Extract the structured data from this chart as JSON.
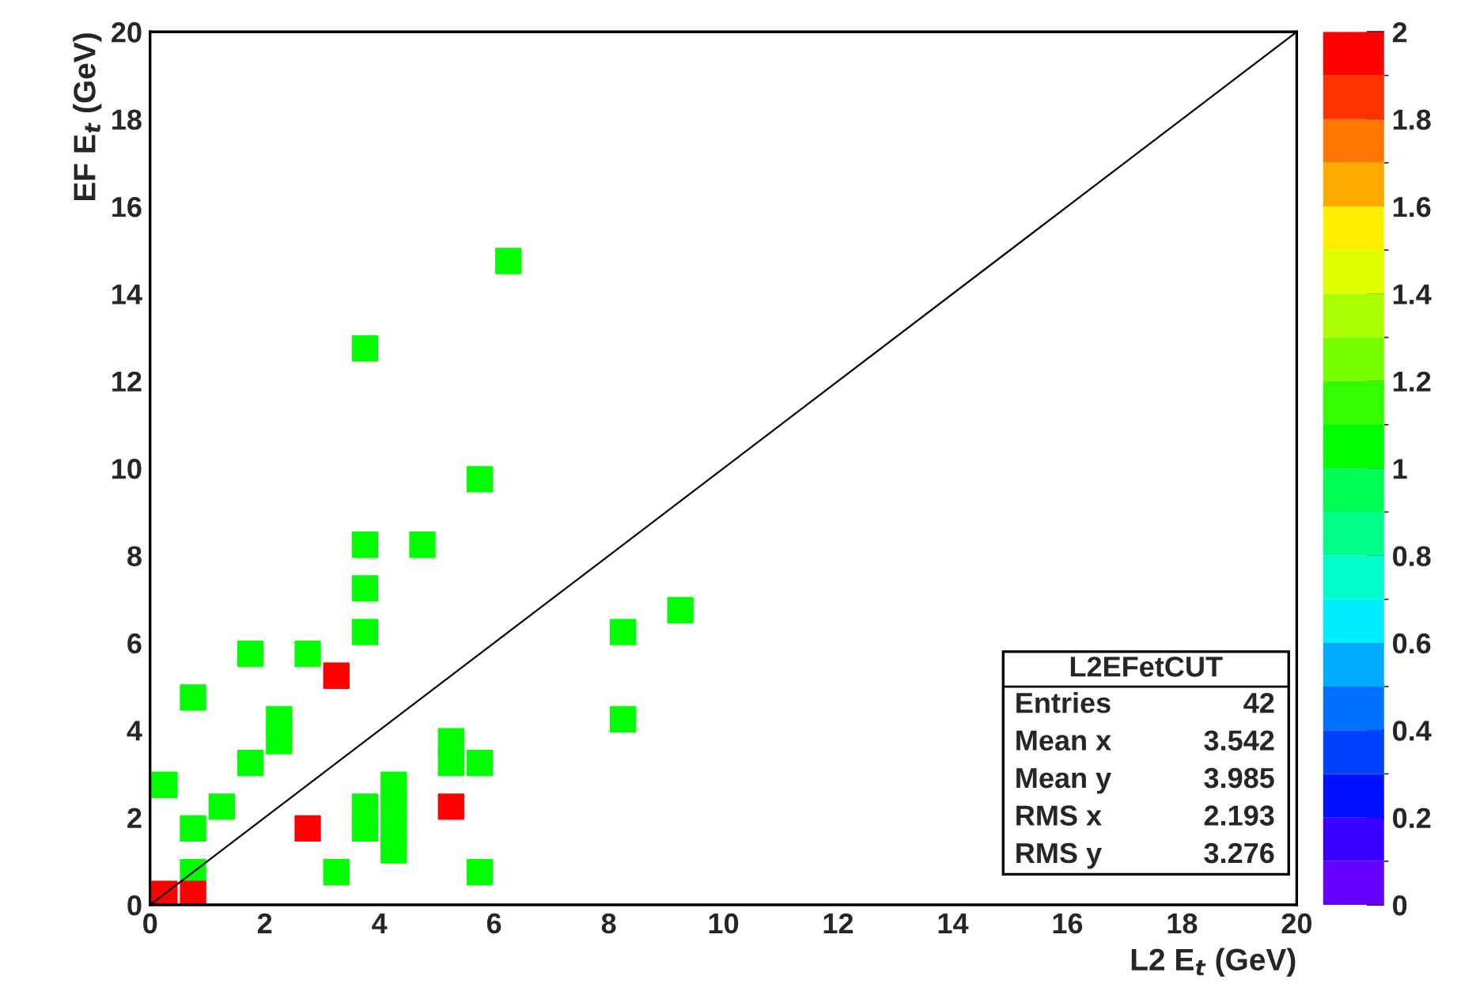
{
  "chart_data": {
    "type": "scatter",
    "xlabel": "L2 E$_{t}$ (GeV)",
    "ylabel": "EF E$_{t}$ (GeV)",
    "series": [
      {
        "type": "scatter",
        "marker": "square",
        "x": [
          6.25,
          3.75,
          5.75,
          3.75,
          4.75,
          3.75,
          3.75,
          1.75,
          2.75,
          3.25,
          0.75,
          2.25,
          2.25,
          1.75,
          0.25,
          1.25,
          0.75,
          2.75,
          3.75,
          3.75,
          4.25,
          4.25,
          4.25,
          4.25,
          3.25,
          5.75,
          5.25,
          5.25,
          5.75,
          5.25,
          0.75,
          0.25,
          0.75,
          8.25,
          9.25,
          8.25
        ],
        "values": [
          14.75,
          12.75,
          9.75,
          8.25,
          8.25,
          7.25,
          6.25,
          5.75,
          5.75,
          5.25,
          4.75,
          4.25,
          3.75,
          3.25,
          2.75,
          2.25,
          1.75,
          1.75,
          1.75,
          2.25,
          1.25,
          1.75,
          2.25,
          2.75,
          0.75,
          0.75,
          3.75,
          3.25,
          3.25,
          2.25,
          0.75,
          0.25,
          0.25,
          6.25,
          6.75,
          4.25
        ],
        "cvalues": [
          1,
          1,
          1,
          1,
          1,
          1,
          1,
          1,
          1,
          2,
          1,
          1,
          1,
          1,
          1,
          1,
          1,
          2,
          1,
          1,
          1,
          1,
          1,
          1,
          1,
          1,
          1,
          1,
          1,
          2,
          1,
          2,
          2,
          1,
          1,
          1
        ],
        "colors": [
          "#00ff00",
          "#00ff00",
          "#00ff00",
          "#00ff00",
          "#00ff00",
          "#00ff00",
          "#00ff00",
          "#00ff00",
          "#00ff00",
          "#ff0000",
          "#00ff00",
          "#00ff00",
          "#00ff00",
          "#00ff00",
          "#00ff00",
          "#00ff00",
          "#00ff00",
          "#ff0000",
          "#00ff00",
          "#00ff00",
          "#00ff00",
          "#00ff00",
          "#00ff00",
          "#00ff00",
          "#00ff00",
          "#00ff00",
          "#00ff00",
          "#00ff00",
          "#00ff00",
          "#ff0000",
          "#00ff00",
          "#ff0000",
          "#ff0000",
          "#00ff00",
          "#00ff00",
          "#00ff00"
        ]
      },
      {
        "type": "line",
        "color": "#000000",
        "x": [
          0,
          20
        ],
        "values": [
          0,
          20
        ]
      }
    ],
    "xlim": [
      0,
      20
    ],
    "ylim": [
      0,
      20
    ],
    "xticks": [
      0,
      2,
      4,
      6,
      8,
      10,
      12,
      14,
      16,
      18,
      20
    ],
    "yticks": [
      0,
      2,
      4,
      6,
      8,
      10,
      12,
      14,
      16,
      18,
      20
    ],
    "clim": [
      0,
      2
    ],
    "cticks": [
      0,
      0.2,
      0.4,
      0.6,
      0.8,
      1,
      1.2,
      1.4,
      1.6,
      1.8,
      2
    ],
    "grid": false,
    "legend": false,
    "annotations": [
      "L2EFetCUT",
      "Entries",
      "42",
      "Mean x",
      "3.542",
      "Mean y",
      "3.985",
      "RMS x",
      "2.193",
      "RMS y",
      "3.276"
    ]
  }
}
